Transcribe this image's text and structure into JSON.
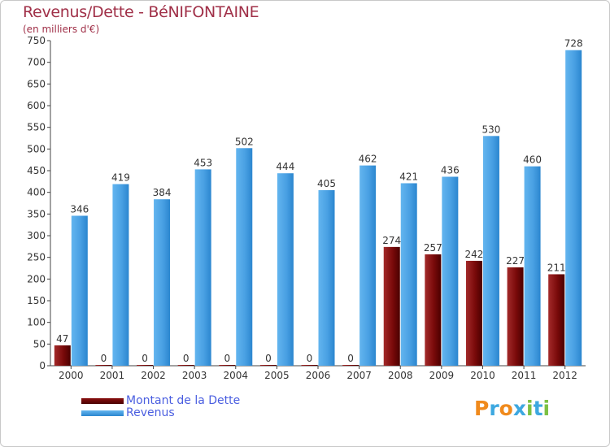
{
  "header": {
    "title": "Revenus/Dette - BéNIFONTAINE",
    "subtitle": "(en milliers d'€)"
  },
  "legend": {
    "items": [
      {
        "label": "Montant de la Dette",
        "color": "#6b0000"
      },
      {
        "label": "Revenus",
        "color": "#4aa3e6"
      }
    ]
  },
  "logo": {
    "text": "Proxiti",
    "letters": [
      "P",
      "r",
      "o",
      "x",
      "i",
      "t",
      "i"
    ],
    "colors": [
      "#f08a1c",
      "#3da8e0",
      "#f08a1c",
      "#3da8e0",
      "#7cc043",
      "#3da8e0",
      "#7cc043"
    ]
  },
  "chart_data": {
    "type": "bar",
    "title": "Revenus/Dette - BéNIFONTAINE",
    "ylabel": "(en milliers d'€)",
    "xlabel": "",
    "ylim": [
      0,
      750
    ],
    "ytick_step": 50,
    "grid": false,
    "legend_position": "bottom-left",
    "categories": [
      "2000",
      "2001",
      "2002",
      "2003",
      "2004",
      "2005",
      "2006",
      "2007",
      "2008",
      "2009",
      "2010",
      "2011",
      "2012"
    ],
    "series": [
      {
        "name": "Montant de la Dette",
        "color": "#6b0000",
        "values": [
          47,
          0,
          0,
          0,
          0,
          0,
          0,
          0,
          274,
          257,
          242,
          227,
          211
        ]
      },
      {
        "name": "Revenus",
        "color": "#4aa3e6",
        "values": [
          346,
          419,
          384,
          453,
          502,
          444,
          405,
          462,
          421,
          436,
          530,
          460,
          728
        ]
      }
    ]
  }
}
